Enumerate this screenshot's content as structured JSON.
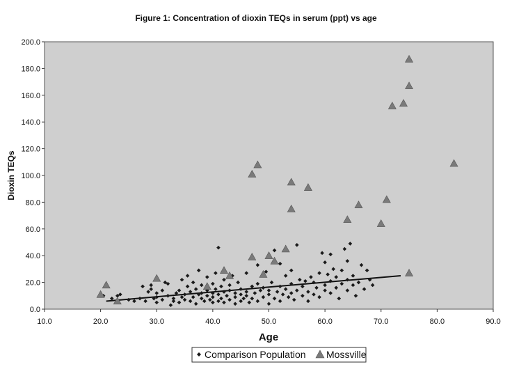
{
  "chart_data": {
    "type": "scatter",
    "title": "Figure 1: Concentration of dioxin TEQs in serum (ppt) vs age",
    "xlabel": "Age",
    "ylabel": "Dioxin TEQs",
    "xlim": [
      10,
      90
    ],
    "ylim": [
      0,
      200
    ],
    "x_ticks": [
      "10.0",
      "20.0",
      "30.0",
      "40.0",
      "50.0",
      "60.0",
      "70.0",
      "80.0",
      "90.0"
    ],
    "y_ticks": [
      "0.0",
      "20.0",
      "40.0",
      "60.0",
      "80.0",
      "100.0",
      "120.0",
      "140.0",
      "160.0",
      "180.0",
      "200.0"
    ],
    "grid": false,
    "plot_background": "#cfcfcf",
    "legend_position": "bottom-center",
    "series": [
      {
        "name": "Comparison Population",
        "marker": "diamond",
        "color": "#1a1a1a",
        "points": [
          [
            20.5,
            10
          ],
          [
            22,
            8
          ],
          [
            23,
            10
          ],
          [
            23.5,
            11
          ],
          [
            25,
            7
          ],
          [
            26,
            6
          ],
          [
            27,
            8
          ],
          [
            27.5,
            17
          ],
          [
            28,
            6
          ],
          [
            28.5,
            13
          ],
          [
            29,
            18
          ],
          [
            29,
            15
          ],
          [
            29.5,
            8
          ],
          [
            30,
            5
          ],
          [
            30,
            9
          ],
          [
            30,
            12
          ],
          [
            31,
            14
          ],
          [
            31,
            7
          ],
          [
            31.5,
            20
          ],
          [
            32,
            19
          ],
          [
            32,
            10
          ],
          [
            32.5,
            3
          ],
          [
            33,
            8
          ],
          [
            33,
            6
          ],
          [
            33.5,
            12
          ],
          [
            34,
            5
          ],
          [
            34,
            14
          ],
          [
            34.5,
            22
          ],
          [
            34.5,
            9
          ],
          [
            35,
            11
          ],
          [
            35,
            7
          ],
          [
            35.5,
            17
          ],
          [
            35.5,
            25
          ],
          [
            36,
            6
          ],
          [
            36,
            13
          ],
          [
            36.5,
            20
          ],
          [
            36.5,
            9
          ],
          [
            37,
            4
          ],
          [
            37,
            15
          ],
          [
            37.5,
            11
          ],
          [
            37.5,
            29
          ],
          [
            38,
            8
          ],
          [
            38,
            18
          ],
          [
            38,
            12
          ],
          [
            38.5,
            6
          ],
          [
            39,
            10
          ],
          [
            39,
            24
          ],
          [
            39,
            14
          ],
          [
            39.5,
            7
          ],
          [
            40,
            5
          ],
          [
            40,
            12
          ],
          [
            40,
            19
          ],
          [
            40,
            9
          ],
          [
            40.5,
            15
          ],
          [
            40.5,
            27
          ],
          [
            41,
            46
          ],
          [
            41,
            6
          ],
          [
            41,
            11
          ],
          [
            41.5,
            8
          ],
          [
            41.5,
            17
          ],
          [
            42,
            13
          ],
          [
            42,
            22
          ],
          [
            42,
            5
          ],
          [
            42.5,
            10
          ],
          [
            43,
            7
          ],
          [
            43,
            18
          ],
          [
            43,
            14
          ],
          [
            43.5,
            25
          ],
          [
            44,
            9
          ],
          [
            44,
            12
          ],
          [
            44,
            4
          ],
          [
            44.5,
            20
          ],
          [
            45,
            11
          ],
          [
            45,
            6
          ],
          [
            45,
            15
          ],
          [
            45.5,
            8
          ],
          [
            46,
            27
          ],
          [
            46,
            13
          ],
          [
            46,
            10
          ],
          [
            46.5,
            5
          ],
          [
            47,
            17
          ],
          [
            47,
            8
          ],
          [
            47.5,
            12
          ],
          [
            48,
            33
          ],
          [
            48,
            19
          ],
          [
            48,
            6
          ],
          [
            48.5,
            14
          ],
          [
            49,
            9
          ],
          [
            49,
            16
          ],
          [
            49.5,
            28
          ],
          [
            50,
            11
          ],
          [
            50,
            4
          ],
          [
            50,
            14
          ],
          [
            50.5,
            20
          ],
          [
            51,
            8
          ],
          [
            51,
            44
          ],
          [
            51.5,
            13
          ],
          [
            52,
            34
          ],
          [
            52,
            17
          ],
          [
            52,
            6
          ],
          [
            52.5,
            11
          ],
          [
            53,
            15
          ],
          [
            53,
            25
          ],
          [
            53.5,
            9
          ],
          [
            54,
            29
          ],
          [
            54,
            12
          ],
          [
            54,
            19
          ],
          [
            54.5,
            7
          ],
          [
            55,
            14
          ],
          [
            55,
            48
          ],
          [
            55.5,
            22
          ],
          [
            56,
            10
          ],
          [
            56,
            17
          ],
          [
            56.5,
            21
          ],
          [
            57,
            6
          ],
          [
            57,
            13
          ],
          [
            57.5,
            24
          ],
          [
            58,
            20
          ],
          [
            58,
            11
          ],
          [
            58.5,
            16
          ],
          [
            59,
            27
          ],
          [
            59,
            9
          ],
          [
            59.5,
            42
          ],
          [
            60,
            18
          ],
          [
            60,
            35
          ],
          [
            60,
            14
          ],
          [
            60.5,
            26
          ],
          [
            61,
            41
          ],
          [
            61,
            21
          ],
          [
            61,
            12
          ],
          [
            61.5,
            30
          ],
          [
            62,
            16
          ],
          [
            62,
            24
          ],
          [
            62.5,
            8
          ],
          [
            63,
            19
          ],
          [
            63,
            29
          ],
          [
            63.5,
            45
          ],
          [
            64,
            14
          ],
          [
            64,
            22
          ],
          [
            64.5,
            49
          ],
          [
            65,
            18
          ],
          [
            65,
            25
          ],
          [
            65.5,
            10
          ],
          [
            66,
            20
          ],
          [
            67,
            15
          ],
          [
            67.5,
            29
          ],
          [
            68,
            22
          ],
          [
            68.5,
            18
          ],
          [
            66.5,
            33
          ],
          [
            64,
            36
          ]
        ]
      },
      {
        "name": "Mossville",
        "marker": "triangle",
        "color": "#7a7a7a",
        "points": [
          [
            20,
            11
          ],
          [
            21,
            18
          ],
          [
            23,
            6
          ],
          [
            30,
            23
          ],
          [
            39,
            17
          ],
          [
            42,
            29
          ],
          [
            43,
            25
          ],
          [
            47,
            101
          ],
          [
            47,
            39
          ],
          [
            48,
            108
          ],
          [
            49,
            26
          ],
          [
            50,
            40
          ],
          [
            51,
            36
          ],
          [
            53,
            45
          ],
          [
            54,
            95
          ],
          [
            54,
            75
          ],
          [
            57,
            91
          ],
          [
            64,
            67
          ],
          [
            66,
            78
          ],
          [
            70,
            64
          ],
          [
            71,
            82
          ],
          [
            72,
            152
          ],
          [
            74,
            154
          ],
          [
            75,
            167
          ],
          [
            75,
            187
          ],
          [
            75,
            27
          ],
          [
            83,
            109
          ]
        ]
      }
    ],
    "trendline": {
      "series": "Comparison Population",
      "x": [
        21,
        73.5
      ],
      "y": [
        6,
        25
      ]
    }
  },
  "legend": {
    "items": [
      {
        "label": "Comparison Population",
        "marker": "diamond"
      },
      {
        "label": "Mossville",
        "marker": "triangle"
      }
    ]
  }
}
